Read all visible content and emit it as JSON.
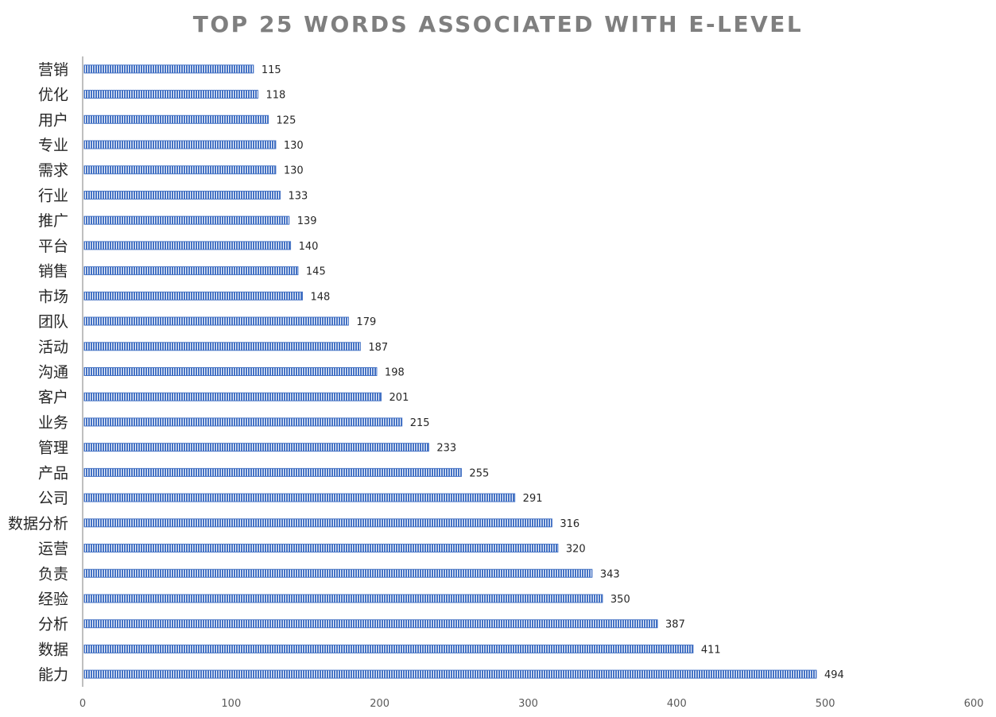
{
  "chart_data": {
    "type": "bar",
    "orientation": "horizontal",
    "title": "TOP 25 WORDS ASSOCIATED WITH E-LEVEL",
    "xlabel": "",
    "ylabel": "",
    "categories": [
      "营销",
      "优化",
      "用户",
      "专业",
      "需求",
      "行业",
      "推广",
      "平台",
      "销售",
      "市场",
      "团队",
      "活动",
      "沟通",
      "客户",
      "业务",
      "管理",
      "产品",
      "公司",
      "数据分析",
      "运营",
      "负责",
      "经验",
      "分析",
      "数据",
      "能力"
    ],
    "values": [
      115,
      118,
      125,
      130,
      130,
      133,
      139,
      140,
      145,
      148,
      179,
      187,
      198,
      201,
      215,
      233,
      255,
      291,
      316,
      320,
      343,
      350,
      387,
      411,
      494
    ],
    "xlim": [
      0,
      600
    ],
    "xticks": [
      0,
      100,
      200,
      300,
      400,
      500,
      600
    ],
    "grid": false,
    "legend": "none",
    "data_labels": true,
    "bar_color": "#4472c4",
    "bar_pattern": "vertical-stripes",
    "title_color": "#7f7f7f",
    "axis_color": "#bfbfbf"
  }
}
